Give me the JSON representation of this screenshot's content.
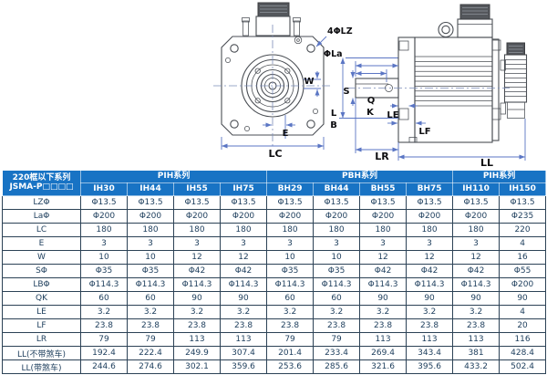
{
  "diagram": {
    "front": {
      "lz": "4ΦLZ",
      "la": "ΦLa",
      "w": "W",
      "e": "E",
      "lc": "LC"
    },
    "side": {
      "s": "S",
      "q": "Q",
      "k": "K",
      "l": "L",
      "b": "B",
      "le": "LE",
      "lf": "LF",
      "lr": "LR",
      "ll": "LL"
    }
  },
  "table": {
    "corner": {
      "line1": "220框以下系列",
      "line2": "JSMA-P□□□□"
    },
    "groups": [
      {
        "label": "PIH系列",
        "span": 4
      },
      {
        "label": "PBH系列",
        "span": 4
      },
      {
        "label": "PIH系列",
        "span": 2
      }
    ],
    "columns": [
      "IH30",
      "IH44",
      "IH55",
      "IH75",
      "BH29",
      "BH44",
      "BH55",
      "BH75",
      "IH110",
      "IH150"
    ],
    "rows": [
      {
        "label": "LZΦ",
        "values": [
          "Φ13.5",
          "Φ13.5",
          "Φ13.5",
          "Φ13.5",
          "Φ13.5",
          "Φ13.5",
          "Φ13.5",
          "Φ13.5",
          "Φ13.5",
          "Φ13.5"
        ]
      },
      {
        "label": "LaΦ",
        "values": [
          "Φ200",
          "Φ200",
          "Φ200",
          "Φ200",
          "Φ200",
          "Φ200",
          "Φ200",
          "Φ200",
          "Φ200",
          "Φ235"
        ]
      },
      {
        "label": "LC",
        "values": [
          "180",
          "180",
          "180",
          "180",
          "180",
          "180",
          "180",
          "180",
          "180",
          "220"
        ]
      },
      {
        "label": "E",
        "values": [
          "3",
          "3",
          "3",
          "3",
          "3",
          "3",
          "3",
          "3",
          "3",
          "4"
        ]
      },
      {
        "label": "W",
        "values": [
          "10",
          "10",
          "12",
          "12",
          "10",
          "10",
          "12",
          "12",
          "12",
          "16"
        ]
      },
      {
        "label": "SΦ",
        "values": [
          "Φ35",
          "Φ35",
          "Φ42",
          "Φ42",
          "Φ35",
          "Φ35",
          "Φ42",
          "Φ42",
          "Φ42",
          "Φ55"
        ]
      },
      {
        "label": "LBΦ",
        "values": [
          "Φ114.3",
          "Φ114.3",
          "Φ114.3",
          "Φ114.3",
          "Φ114.3",
          "Φ114.3",
          "Φ114.3",
          "Φ114.3",
          "Φ114.3",
          "Φ200"
        ]
      },
      {
        "label": "QK",
        "values": [
          "60",
          "60",
          "90",
          "90",
          "60",
          "60",
          "90",
          "90",
          "90",
          "90"
        ]
      },
      {
        "label": "LE",
        "values": [
          "3.2",
          "3.2",
          "3.2",
          "3.2",
          "3.2",
          "3.2",
          "3.2",
          "3.2",
          "3.2",
          "4"
        ]
      },
      {
        "label": "LF",
        "values": [
          "23.8",
          "23.8",
          "23.8",
          "23.8",
          "23.8",
          "23.8",
          "23.8",
          "23.8",
          "23.8",
          "20"
        ]
      },
      {
        "label": "LR",
        "values": [
          "79",
          "79",
          "113",
          "113",
          "79",
          "79",
          "113",
          "113",
          "113",
          "116"
        ]
      },
      {
        "label": "LL(不带煞车)",
        "values": [
          "192.4",
          "222.4",
          "249.9",
          "307.4",
          "201.4",
          "233.4",
          "269.4",
          "343.4",
          "381",
          "428.4"
        ]
      },
      {
        "label": "LL(带煞车)",
        "values": [
          "244.6",
          "274.6",
          "302.1",
          "359.6",
          "253.6",
          "285.6",
          "321.6",
          "395.6",
          "433.2",
          "502.4"
        ]
      }
    ]
  },
  "colors": {
    "header_bg": "#1873c4",
    "header_text": "#ffffff",
    "grid": "#2c4256",
    "value_text": "#21415f",
    "dim_line": "#5b76c4",
    "object_line": "#4a4e54"
  }
}
